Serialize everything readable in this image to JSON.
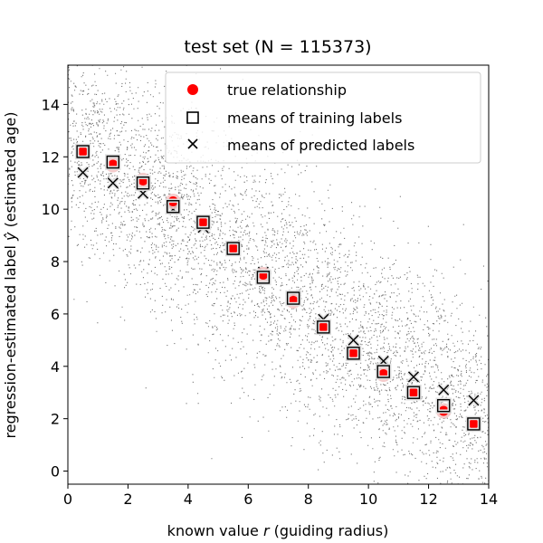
{
  "chart_data": {
    "type": "scatter",
    "title": "test set (N = 115373)",
    "xlabel_pre": "known value ",
    "xlabel_var": "r",
    "xlabel_post": " (guiding radius)",
    "ylabel_pre": "regression-estimated label ",
    "ylabel_var": "ŷ",
    "ylabel_post": " (estimated age)",
    "xlim": [
      0,
      14
    ],
    "ylim": [
      -0.5,
      15.5
    ],
    "xticks": [
      0,
      2,
      4,
      6,
      8,
      10,
      12,
      14
    ],
    "yticks": [
      0,
      2,
      4,
      6,
      8,
      10,
      12,
      14
    ],
    "grid": false,
    "legend_position": "top-right",
    "colors": {
      "true_relationship": "#ff0000",
      "cloud": "#000000",
      "marker_edge": "#000000",
      "marker_halo": "#ffffff"
    },
    "x": [
      0.5,
      1.5,
      2.5,
      3.5,
      4.5,
      5.5,
      6.5,
      7.5,
      8.5,
      9.5,
      10.5,
      11.5,
      12.5,
      13.5
    ],
    "series": [
      {
        "name": "true relationship",
        "marker": "circle",
        "values": [
          12.2,
          11.7,
          11.1,
          10.3,
          9.5,
          8.5,
          7.5,
          6.5,
          5.5,
          4.5,
          3.7,
          3.0,
          2.3,
          1.8
        ]
      },
      {
        "name": "means of training labels",
        "marker": "square",
        "values": [
          12.2,
          11.8,
          11.0,
          10.1,
          9.5,
          8.5,
          7.4,
          6.6,
          5.5,
          4.5,
          3.8,
          3.0,
          2.5,
          1.8
        ]
      },
      {
        "name": "means of predicted labels",
        "marker": "x",
        "values": [
          11.4,
          11.0,
          10.6,
          10.0,
          9.3,
          8.5,
          7.6,
          6.7,
          5.8,
          5.0,
          4.2,
          3.6,
          3.1,
          2.7
        ]
      }
    ],
    "cloud": {
      "n_drawn": 4500,
      "relation": "y = 12.8 - 0.8 * x",
      "noise_sd": 2.2
    }
  }
}
